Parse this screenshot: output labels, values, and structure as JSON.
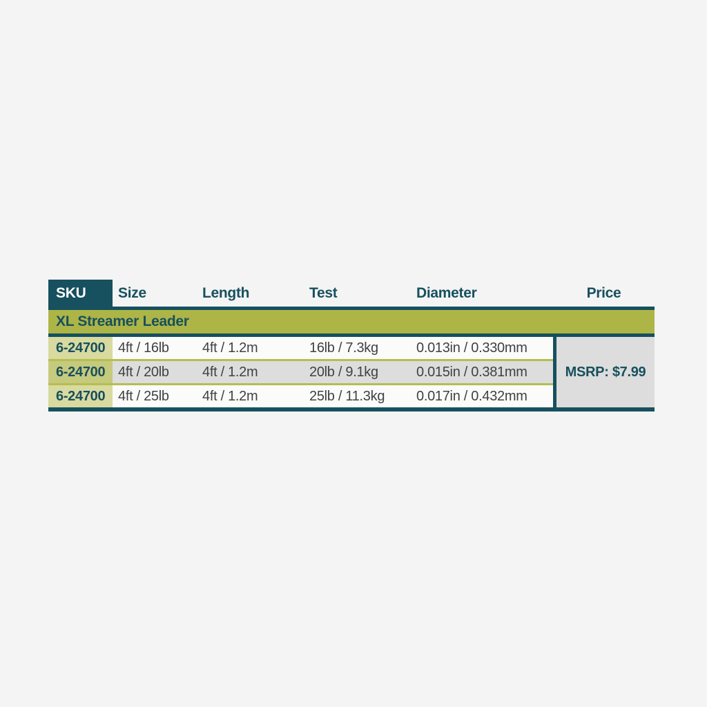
{
  "table": {
    "columns": [
      {
        "key": "sku",
        "label": "SKU"
      },
      {
        "key": "size",
        "label": "Size"
      },
      {
        "key": "length",
        "label": "Length"
      },
      {
        "key": "test",
        "label": "Test"
      },
      {
        "key": "diameter",
        "label": "Diameter"
      },
      {
        "key": "price",
        "label": "Price"
      }
    ],
    "group_header": "XL Streamer Leader",
    "rows": [
      {
        "sku": "6-24700",
        "size": "4ft / 16lb",
        "length": "4ft / 1.2m",
        "test": "16lb / 7.3kg",
        "diameter": "0.013in / 0.330mm"
      },
      {
        "sku": "6-24700",
        "size": "4ft / 20lb",
        "length": "4ft / 1.2m",
        "test": "20lb / 9.1kg",
        "diameter": "0.015in / 0.381mm"
      },
      {
        "sku": "6-24700",
        "size": "4ft / 25lb",
        "length": "4ft / 1.2m",
        "test": "25lb / 11.3kg",
        "diameter": "0.017in / 0.432mm"
      }
    ],
    "price": "MSRP: $7.99",
    "colors": {
      "teal": "#17505e",
      "olive_band": "#adb547",
      "khaki_light": "#d8daa0",
      "khaki_dark": "#c6ca7c",
      "row_light": "#fbfbfa",
      "row_gray": "#dcdddc",
      "separator_olive": "#b6bd52",
      "page_background": "#f4f4f4",
      "data_text": "#3f4242"
    }
  }
}
